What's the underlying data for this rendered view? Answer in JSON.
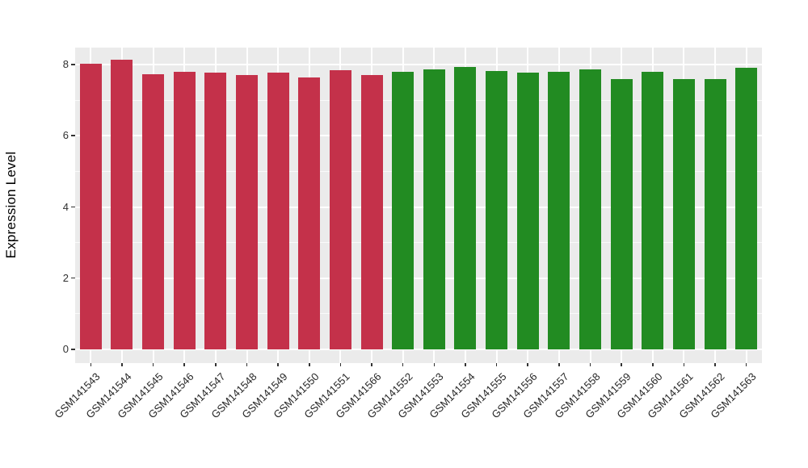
{
  "chart_data": {
    "type": "bar",
    "title": "",
    "xlabel": "",
    "ylabel": "Expression Level",
    "yticks": [
      0,
      2,
      4,
      6,
      8
    ],
    "ylim": [
      0,
      8.5
    ],
    "grid": "major and minor horizontal white gridlines plus vertical category gridlines on gray panel",
    "legend": "none",
    "palette": {
      "group1": "#C4314A",
      "group2": "#228B22"
    },
    "panel_background": "#EBEBEB",
    "categories": [
      "GSM141543",
      "GSM141544",
      "GSM141545",
      "GSM141546",
      "GSM141547",
      "GSM141548",
      "GSM141549",
      "GSM141550",
      "GSM141551",
      "GSM141566",
      "GSM141552",
      "GSM141553",
      "GSM141554",
      "GSM141555",
      "GSM141556",
      "GSM141557",
      "GSM141558",
      "GSM141559",
      "GSM141560",
      "GSM141561",
      "GSM141562",
      "GSM141563"
    ],
    "values": [
      8.02,
      8.13,
      7.73,
      7.8,
      7.78,
      7.71,
      7.78,
      7.64,
      7.84,
      7.71,
      7.81,
      7.87,
      7.94,
      7.82,
      7.78,
      7.81,
      7.87,
      7.6,
      7.8,
      7.6,
      7.6,
      7.91
    ],
    "bar_groups": [
      "group1",
      "group1",
      "group1",
      "group1",
      "group1",
      "group1",
      "group1",
      "group1",
      "group1",
      "group1",
      "group2",
      "group2",
      "group2",
      "group2",
      "group2",
      "group2",
      "group2",
      "group2",
      "group2",
      "group2",
      "group2",
      "group2"
    ]
  }
}
